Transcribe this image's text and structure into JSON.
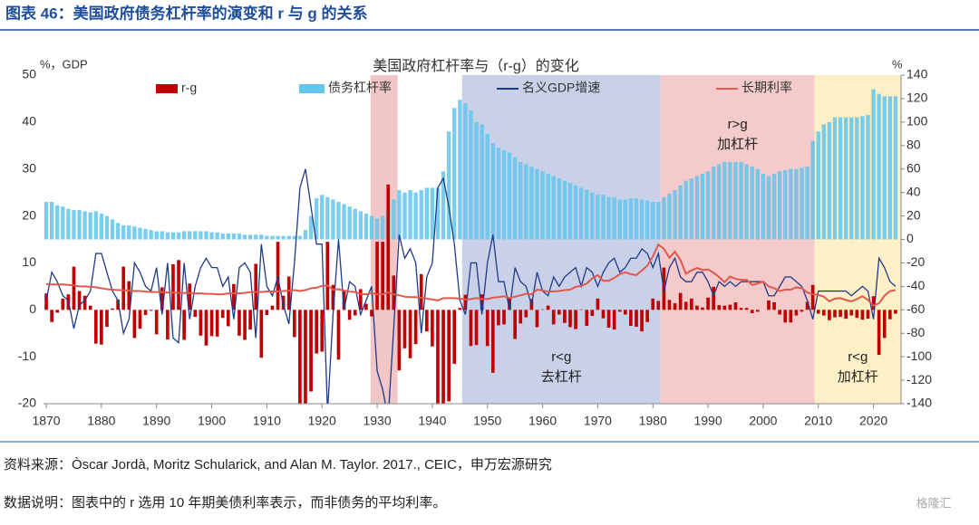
{
  "header": {
    "title": "图表 46：美国政府债务杠杆率的演变和 r 与 g 的关系"
  },
  "footer": {
    "source": "资料来源：Òscar Jordà, Moritz Schularick, and Alan M. Taylor. 2017., CEIC，申万宏源研究",
    "note": "数据说明：图表中的 r 选用 10 年期美债利率表示，而非债务的平均利率。",
    "watermark": "格隆汇"
  },
  "chart_data": {
    "type": "combo",
    "title": "美国政府杠杆率与（r-g）的变化",
    "y_label": "%，GDP",
    "y2_label": "%",
    "xlim": [
      1869.5,
      2025
    ],
    "xticks": [
      1870,
      1880,
      1890,
      1900,
      1910,
      1920,
      1930,
      1940,
      1950,
      1960,
      1970,
      1980,
      1990,
      2000,
      2010,
      2020
    ],
    "ylim": [
      -20,
      50
    ],
    "yticks": [
      -20,
      -10,
      0,
      10,
      20,
      30,
      40,
      50
    ],
    "y2lim": [
      -140,
      140
    ],
    "y2ticks": [
      -140,
      -120,
      -100,
      -80,
      -60,
      -40,
      -20,
      0,
      20,
      40,
      60,
      80,
      100,
      120,
      140
    ],
    "regions": [
      {
        "start": 1928.8,
        "end": 1933.7,
        "color": "#f1c6c6"
      },
      {
        "start": 1945.4,
        "end": 1981.4,
        "color": "#c9d1e8",
        "label": [
          "r<g",
          "去杠杆"
        ],
        "label_position": "bottom"
      },
      {
        "start": 1981.4,
        "end": 2009.3,
        "color": "#f4caca",
        "label": [
          "r>g",
          "加杠杆"
        ],
        "label_position": "top"
      },
      {
        "start": 2009.3,
        "end": 2025,
        "color": "#fdf0c6",
        "label": [
          "r<g",
          "加杠杆"
        ],
        "label_position": "bottom"
      }
    ],
    "x": [
      1870,
      1871,
      1872,
      1873,
      1874,
      1875,
      1876,
      1877,
      1878,
      1879,
      1880,
      1881,
      1882,
      1883,
      1884,
      1885,
      1886,
      1887,
      1888,
      1889,
      1890,
      1891,
      1892,
      1893,
      1894,
      1895,
      1896,
      1897,
      1898,
      1899,
      1900,
      1901,
      1902,
      1903,
      1904,
      1905,
      1906,
      1907,
      1908,
      1909,
      1910,
      1911,
      1912,
      1913,
      1914,
      1915,
      1916,
      1917,
      1918,
      1919,
      1920,
      1921,
      1922,
      1923,
      1924,
      1925,
      1926,
      1927,
      1928,
      1929,
      1930,
      1931,
      1932,
      1933,
      1934,
      1935,
      1936,
      1937,
      1938,
      1939,
      1940,
      1941,
      1942,
      1943,
      1944,
      1945,
      1946,
      1947,
      1948,
      1949,
      1950,
      1951,
      1952,
      1953,
      1954,
      1955,
      1956,
      1957,
      1958,
      1959,
      1960,
      1961,
      1962,
      1963,
      1964,
      1965,
      1966,
      1967,
      1968,
      1969,
      1970,
      1971,
      1972,
      1973,
      1974,
      1975,
      1976,
      1977,
      1978,
      1979,
      1980,
      1981,
      1982,
      1983,
      1984,
      1985,
      1986,
      1987,
      1988,
      1989,
      1990,
      1991,
      1992,
      1993,
      1994,
      1995,
      1996,
      1997,
      1998,
      1999,
      2000,
      2001,
      2002,
      2003,
      2004,
      2005,
      2006,
      2007,
      2008,
      2009,
      2010,
      2011,
      2012,
      2013,
      2014,
      2015,
      2016,
      2017,
      2018,
      2019,
      2020,
      2021,
      2022,
      2023,
      2024
    ],
    "series": [
      {
        "name": "债务杠杆率",
        "type": "bar",
        "axis": "y2",
        "color": "#62c6ec",
        "values": [
          32,
          32,
          29,
          28,
          26,
          25,
          25,
          24,
          23,
          24,
          22,
          20,
          17,
          14,
          12,
          12,
          11,
          10,
          9,
          8,
          7,
          7,
          6,
          6,
          6,
          7,
          7,
          7,
          7,
          7,
          6,
          6,
          5,
          5,
          5,
          5,
          4,
          4,
          4,
          4,
          3,
          3,
          3,
          3,
          3,
          3,
          3,
          8,
          20,
          35,
          38,
          36,
          34,
          32,
          30,
          28,
          26,
          24,
          22,
          20,
          18,
          20,
          26,
          34,
          42,
          40,
          42,
          40,
          42,
          44,
          44,
          44,
          58,
          92,
          112,
          119,
          116,
          110,
          100,
          98,
          90,
          82,
          78,
          76,
          74,
          70,
          66,
          64,
          62,
          60,
          58,
          56,
          54,
          52,
          50,
          48,
          46,
          44,
          42,
          40,
          38,
          38,
          36,
          36,
          34,
          34,
          35,
          35,
          34,
          33,
          32,
          32,
          36,
          39,
          42,
          46,
          50,
          52,
          54,
          56,
          58,
          62,
          64,
          66,
          66,
          66,
          66,
          64,
          62,
          60,
          56,
          54,
          56,
          58,
          59,
          60,
          60,
          61,
          62,
          84,
          92,
          98,
          100,
          104,
          104,
          104,
          104,
          104,
          105,
          106,
          128,
          124,
          122,
          122,
          122
        ]
      },
      {
        "name": "r-g",
        "type": "bar",
        "color": "#c00000",
        "values": [
          3.5,
          -2.6,
          -0.6,
          2.4,
          3.3,
          9.2,
          4.0,
          3.0,
          0.9,
          -7.2,
          -7.4,
          -3.6,
          0.3,
          2.2,
          9.2,
          6.1,
          -6.0,
          -4.0,
          -1.1,
          -0.2,
          -5.2,
          4.8,
          -6.3,
          9.7,
          10.6,
          -6.4,
          5.6,
          -1.5,
          -5.5,
          -7.6,
          -5.6,
          -5.7,
          -1.7,
          -3.5,
          5.5,
          -5.5,
          -6.4,
          -4.2,
          9.8,
          -10.2,
          -1.1,
          0.9,
          14.5,
          3.0,
          7.1,
          -5.8,
          -20,
          -20,
          -17.4,
          -9.3,
          -8.9,
          14.5,
          5.3,
          -10.6,
          4.1,
          -2.1,
          -1.2,
          4.4,
          1.3,
          -1.4,
          14.5,
          14.5,
          26.7,
          7.3,
          -12.9,
          -8.2,
          -10.3,
          -7.3,
          7.6,
          -4.6,
          -7.8,
          -20,
          -20,
          -19.5,
          -11.5,
          0.4,
          3.2,
          -7.7,
          -7.5,
          3.3,
          -7.7,
          -13.4,
          -3.3,
          -3.1,
          2.5,
          -6.2,
          -2.9,
          -1.6,
          2.3,
          -3.7,
          0.1,
          0.9,
          -3.1,
          -1.0,
          -2.8,
          -3.7,
          -4.1,
          0.1,
          -3.4,
          -1.3,
          2.4,
          -1.8,
          -3.8,
          -4.2,
          -0.4,
          -1.0,
          -3.4,
          -3.6,
          -4.6,
          -2.6,
          2.4,
          1.9,
          9.0,
          2.1,
          1.4,
          3.6,
          1.7,
          2.4,
          0.9,
          0.5,
          2.6,
          4.9,
          1.0,
          0.9,
          1.1,
          1.6,
          0.4,
          0.4,
          -0.7,
          -0.4,
          0,
          2.0,
          1.6,
          -1.0,
          -2.7,
          -2.7,
          -1.2,
          -0.4,
          1.7,
          5.3,
          -0.8,
          -1.2,
          -2.2,
          -1.6,
          -1.5,
          -1.9,
          -1.2,
          -1.7,
          -2.1,
          -1.9,
          2.9,
          -9.6,
          -6.0,
          -2.0,
          -0.8
        ]
      },
      {
        "name": "名义GDP增速",
        "type": "line",
        "color": "#1f3a8a",
        "values": [
          2,
          8,
          6,
          3,
          2,
          -4,
          1,
          2,
          4,
          12,
          12,
          8,
          4,
          2,
          -5,
          -2,
          10,
          8,
          5,
          4,
          9,
          -1,
          10,
          -6,
          -7,
          10,
          -2,
          5,
          9,
          11,
          9,
          9,
          5,
          7,
          -2,
          9,
          10,
          8,
          -6,
          14,
          5,
          3,
          7,
          1,
          -3,
          10,
          26,
          30,
          22,
          14,
          14,
          -22,
          -1,
          15,
          0,
          6,
          5,
          -1,
          2,
          5,
          -13,
          -17,
          -23,
          -4,
          16,
          11,
          13,
          10,
          -5,
          7,
          10,
          26,
          28,
          22,
          14,
          2,
          -1,
          10,
          10,
          -1,
          10,
          16,
          6,
          6,
          0,
          9,
          6,
          5,
          1,
          8,
          4,
          3,
          7,
          5,
          7,
          8,
          9,
          5,
          9,
          8,
          5,
          8,
          10,
          11,
          8,
          9,
          11,
          11,
          13,
          12,
          9,
          12,
          4,
          9,
          11,
          7,
          6,
          6,
          8,
          8,
          6,
          3,
          6,
          5,
          6,
          5,
          6,
          6,
          6,
          6,
          6,
          3,
          3,
          5,
          7,
          7,
          6,
          5,
          2,
          -2,
          4,
          4,
          4,
          4,
          4,
          4,
          3,
          4,
          5,
          4,
          -2,
          11,
          9,
          6,
          5
        ]
      },
      {
        "name": "长期利率",
        "type": "line",
        "color": "#e3574c",
        "values": [
          5.5,
          5.4,
          5.4,
          5.4,
          5.3,
          5.2,
          5.0,
          5.0,
          4.9,
          4.8,
          4.6,
          4.4,
          4.3,
          4.2,
          4.2,
          4.1,
          4.0,
          4.0,
          3.9,
          3.8,
          3.8,
          3.8,
          3.7,
          3.7,
          3.6,
          3.6,
          3.6,
          3.5,
          3.5,
          3.4,
          3.4,
          3.3,
          3.3,
          3.5,
          3.5,
          3.5,
          3.6,
          3.8,
          3.8,
          3.8,
          3.9,
          3.9,
          3.9,
          4.0,
          4.1,
          4.2,
          4.0,
          4.2,
          4.6,
          4.7,
          5.1,
          5.2,
          4.3,
          4.4,
          4.1,
          3.9,
          3.8,
          3.4,
          3.3,
          3.6,
          3.3,
          3.3,
          3.7,
          3.3,
          3.1,
          2.8,
          2.7,
          2.7,
          2.6,
          2.4,
          2.2,
          2.0,
          2.5,
          2.5,
          2.5,
          2.4,
          2.2,
          2.3,
          2.5,
          2.3,
          2.3,
          2.6,
          2.7,
          2.9,
          2.5,
          2.8,
          3.1,
          3.4,
          3.3,
          4.3,
          4.1,
          3.9,
          3.9,
          4.0,
          4.2,
          4.3,
          4.9,
          5.1,
          5.6,
          6.7,
          7.4,
          6.2,
          6.2,
          6.8,
          7.6,
          8.0,
          7.6,
          7.4,
          8.4,
          9.4,
          11.4,
          13.9,
          13.0,
          11.1,
          12.4,
          10.6,
          7.7,
          8.4,
          8.9,
          8.5,
          8.6,
          7.9,
          7.0,
          5.9,
          7.1,
          6.6,
          6.4,
          6.4,
          5.3,
          5.6,
          6.0,
          5.0,
          4.6,
          4.0,
          4.3,
          4.3,
          4.8,
          4.6,
          3.7,
          3.3,
          3.2,
          2.8,
          1.8,
          2.4,
          2.5,
          2.1,
          1.8,
          2.3,
          2.9,
          2.1,
          0.9,
          1.4,
          3.0,
          4.0,
          4.2
        ]
      }
    ],
    "legend_order": [
      1,
      0,
      2,
      3
    ]
  }
}
